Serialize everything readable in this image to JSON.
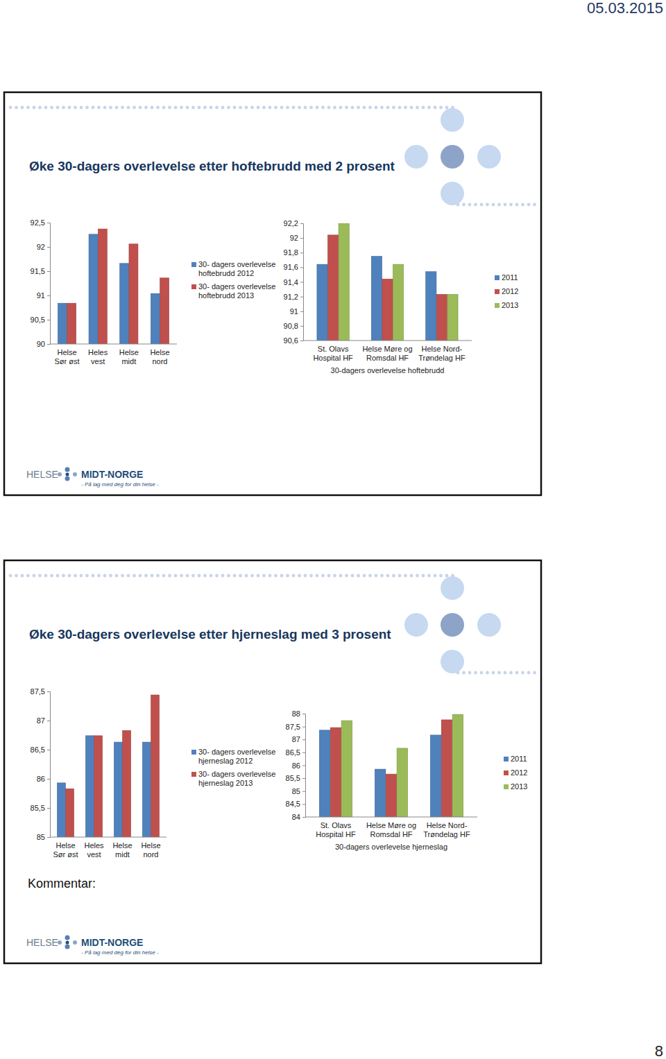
{
  "page": {
    "date": "05.03.2015",
    "page_number": 8
  },
  "slides": [
    {
      "title": "Øke 30-dagers overlevelse etter hoftebrudd med 2 prosent",
      "logo": {
        "name1": "HELSE",
        "name2": "MIDT-NORGE",
        "tagline": "- På lag med deg for din helse -"
      }
    },
    {
      "title": "Øke 30-dagers overlevelse etter hjerneslag med 3 prosent",
      "comment": "Kommentar:",
      "logo": {
        "name1": "HELSE",
        "name2": "MIDT-NORGE",
        "tagline": "- På lag med deg for din helse -"
      }
    }
  ],
  "chart_data": [
    {
      "type": "bar",
      "legend": "right",
      "categories": [
        "Helse Sør øst",
        "Heles vest",
        "Helse midt",
        "Helse nord"
      ],
      "series": [
        {
          "name": "30- dagers overlevelse hoftebrudd 2012",
          "color": "#4F81BD",
          "values": [
            90.84,
            92.26,
            91.66,
            91.04
          ]
        },
        {
          "name": "30- dagers overlevelse hoftebrudd 2013",
          "color": "#C0504D",
          "values": [
            90.84,
            92.37,
            92.06,
            91.36
          ]
        }
      ],
      "ylim": [
        90,
        92.5
      ],
      "yticks": [
        90,
        {
          "value": 90.5,
          "label": "90,5"
        },
        91,
        {
          "value": 91.5,
          "label": "91,5"
        },
        92,
        {
          "value": 92.5,
          "label": "92,5"
        }
      ]
    },
    {
      "type": "bar",
      "legend": "right",
      "x_label": "30-dagers overlevelse hoftebrudd",
      "categories": [
        "St. Olavs Hospital HF",
        "Helse Møre og Romsdal HF",
        "Helse Nord-Trøndelag HF"
      ],
      "series": [
        {
          "name": "2011",
          "color": "#4F81BD",
          "values": [
            91.64,
            91.75,
            91.54
          ]
        },
        {
          "name": "2012",
          "color": "#C0504D",
          "values": [
            92.04,
            91.44,
            91.23
          ]
        },
        {
          "name": "2013",
          "color": "#9BBB59",
          "values": [
            92.2,
            91.64,
            91.23
          ]
        }
      ],
      "ylim": [
        90.6,
        92.2
      ],
      "yticks": [
        {
          "value": 90.6,
          "label": "90,6"
        },
        {
          "value": 90.8,
          "label": "90,8"
        },
        91,
        {
          "value": 91.2,
          "label": "91,2"
        },
        {
          "value": 91.4,
          "label": "91,4"
        },
        {
          "value": 91.6,
          "label": "91,6"
        },
        {
          "value": 91.8,
          "label": "91,8"
        },
        92,
        {
          "value": 92.2,
          "label": "92,2"
        }
      ]
    },
    {
      "type": "bar",
      "legend": "right",
      "categories": [
        "Helse Sør øst",
        "Heles vest",
        "Helse midt",
        "Helse nord"
      ],
      "series": [
        {
          "name": "30- dagers overlevelse hjerneslag 2012",
          "color": "#4F81BD",
          "values": [
            85.93,
            86.74,
            86.63,
            86.63
          ]
        },
        {
          "name": "30- dagers overlevelse hjerneslag 2013",
          "color": "#C0504D",
          "values": [
            85.83,
            86.74,
            86.83,
            87.44
          ]
        }
      ],
      "ylim": [
        85,
        87.5
      ],
      "yticks": [
        85,
        {
          "value": 85.5,
          "label": "85,5"
        },
        86,
        {
          "value": 86.5,
          "label": "86,5"
        },
        87,
        {
          "value": 87.5,
          "label": "87,5"
        }
      ]
    },
    {
      "type": "bar",
      "legend": "right",
      "x_label": "30-dagers overlevelse hjerneslag",
      "categories": [
        "St. Olavs Hospital HF",
        "Helse Møre og Romsdal HF",
        "Helse Nord-Trøndelag HF"
      ],
      "series": [
        {
          "name": "2011",
          "color": "#4F81BD",
          "values": [
            87.36,
            85.85,
            87.17
          ]
        },
        {
          "name": "2012",
          "color": "#C0504D",
          "values": [
            87.46,
            85.66,
            87.76
          ]
        },
        {
          "name": "2013",
          "color": "#9BBB59",
          "values": [
            87.73,
            86.66,
            87.97
          ]
        }
      ],
      "ylim": [
        84,
        88
      ],
      "yticks": [
        84,
        {
          "value": 84.5,
          "label": "84,5"
        },
        85,
        {
          "value": 85.5,
          "label": "85,5"
        },
        86,
        {
          "value": 86.5,
          "label": "86,5"
        },
        87,
        {
          "value": 87.5,
          "label": "87,5"
        },
        88
      ]
    }
  ]
}
